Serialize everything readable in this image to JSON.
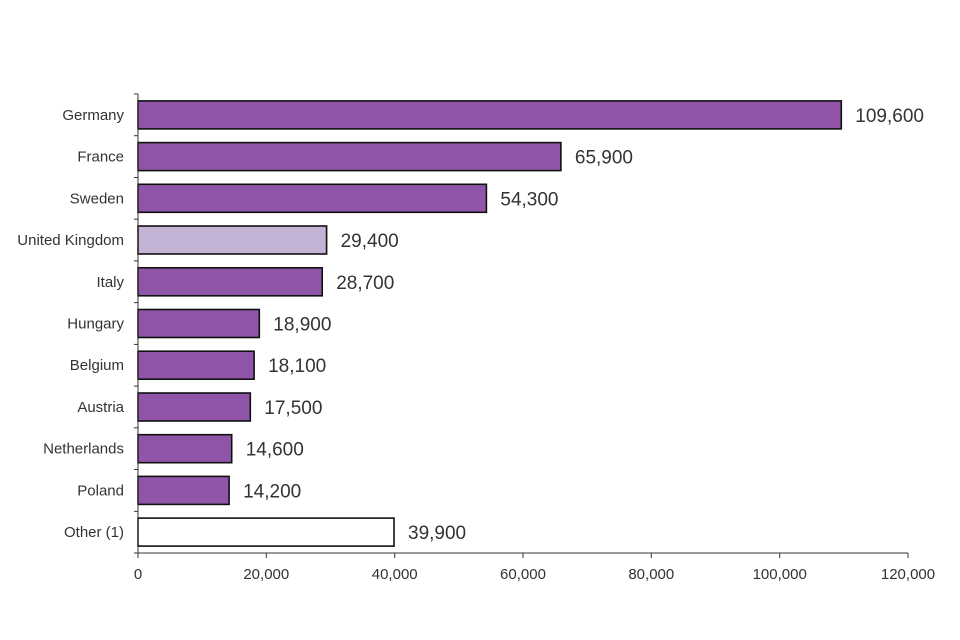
{
  "chart_data": {
    "type": "bar",
    "orientation": "horizontal",
    "title": "",
    "xlabel": "",
    "ylabel": "",
    "categories": [
      "Germany",
      "France",
      "Sweden",
      "United Kingdom",
      "Italy",
      "Hungary",
      "Belgium",
      "Austria",
      "Netherlands",
      "Poland",
      "Other (1)"
    ],
    "values": [
      109600,
      65900,
      54300,
      29400,
      28700,
      18900,
      18100,
      17500,
      14600,
      14200,
      39900
    ],
    "value_labels": [
      "109,600",
      "65,900",
      "54,300",
      "29,400",
      "28,700",
      "18,900",
      "18,100",
      "17,500",
      "14,600",
      "14,200",
      "39,900"
    ],
    "xlim": [
      0,
      120000
    ],
    "x_ticks": [
      0,
      20000,
      40000,
      60000,
      80000,
      100000,
      120000
    ],
    "x_tick_labels": [
      "0",
      "20,000",
      "40,000",
      "60,000",
      "80,000",
      "100,000",
      "120,000"
    ],
    "grid": false,
    "legend": "none",
    "bar_colors": [
      "#9055a8",
      "#9055a8",
      "#9055a8",
      "#c3b3d4",
      "#9055a8",
      "#9055a8",
      "#9055a8",
      "#9055a8",
      "#9055a8",
      "#9055a8",
      "#ffffff"
    ],
    "bar_edge_color": "#111111",
    "axis_color": "#333333",
    "text_color": "#333333"
  }
}
